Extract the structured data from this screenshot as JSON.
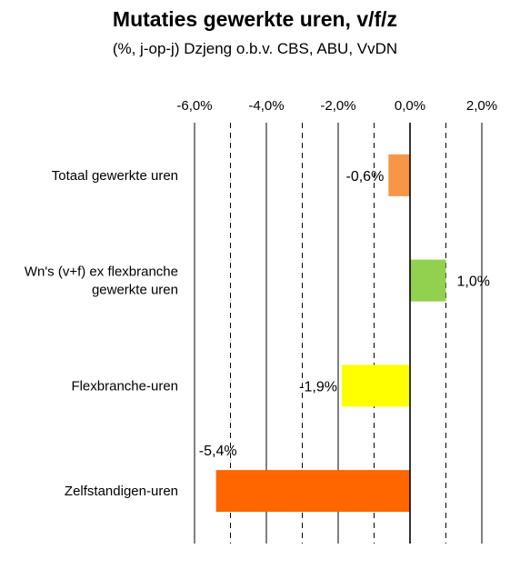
{
  "chart_data": {
    "type": "bar",
    "orientation": "horizontal",
    "title": "Mutaties gewerkte uren, v/f/z",
    "subtitle": "(%, j-op-j) Dzjeng o.b.v. CBS, ABU, VvDN",
    "categories": [
      [
        "Totaal gewerkte uren"
      ],
      [
        "Wn's (v+f) ex flexbranche",
        "gewerkte uren"
      ],
      [
        "Flexbranche-uren"
      ],
      [
        "Zelfstandigen-uren"
      ]
    ],
    "values": [
      -0.6,
      1.0,
      -1.9,
      -5.4
    ],
    "data_labels": [
      "-0,6%",
      "1,0%",
      "-1,9%",
      "-5,4%"
    ],
    "colors": [
      "#F79646",
      "#92D050",
      "#FFFF00",
      "#FF6600"
    ],
    "xlim": [
      -6.0,
      2.0
    ],
    "x_ticks": [
      -6,
      -4,
      -2,
      0,
      2
    ],
    "x_tick_labels": [
      "-6,0%",
      "-4,0%",
      "-2,0%",
      "0,0%",
      "2,0%"
    ],
    "minor_gridlines": [
      -5,
      -3,
      -1,
      1
    ],
    "axis_position": "top",
    "grid": true
  }
}
